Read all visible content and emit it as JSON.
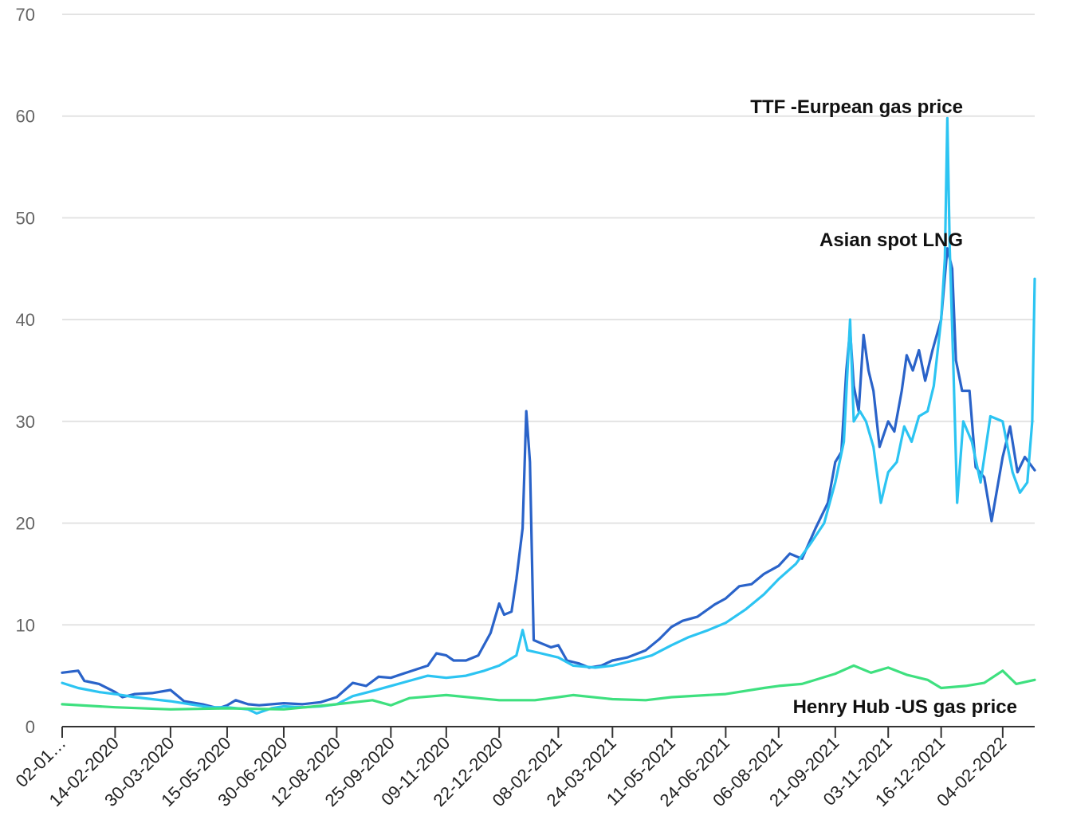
{
  "chart_data": {
    "type": "line",
    "title": "",
    "xlabel": "",
    "ylabel": "",
    "ylim": [
      0,
      70
    ],
    "y_ticks": [
      0,
      10,
      20,
      30,
      40,
      50,
      60,
      70
    ],
    "x_tick_labels": [
      "02-01…",
      "14-02-2020",
      "30-03-2020",
      "15-05-2020",
      "30-06-2020",
      "12-08-2020",
      "25-09-2020",
      "09-11-2020",
      "22-12-2020",
      "08-02-2021",
      "24-03-2021",
      "11-05-2021",
      "24-06-2021",
      "06-08-2021",
      "21-09-2021",
      "03-11-2021",
      "16-12-2021",
      "04-02-2022"
    ],
    "x_tick_dates": [
      "2020-01-02",
      "2020-02-14",
      "2020-03-30",
      "2020-05-15",
      "2020-06-30",
      "2020-08-12",
      "2020-09-25",
      "2020-11-09",
      "2020-12-22",
      "2021-02-08",
      "2021-03-24",
      "2021-05-11",
      "2021-06-24",
      "2021-08-06",
      "2021-09-21",
      "2021-11-03",
      "2021-12-16",
      "2022-02-04"
    ],
    "x_range": [
      "2020-01-02",
      "2022-03-02"
    ],
    "grid": true,
    "legend": "none",
    "annotations": [
      {
        "text": "TTF -Eurpean gas price",
        "series": "ttf"
      },
      {
        "text": "Asian spot LNG",
        "series": "asian"
      },
      {
        "text": "Henry Hub -US gas price",
        "series": "henry"
      }
    ],
    "series": [
      {
        "key": "asian",
        "color": "#2a63c9",
        "points": [
          [
            "2020-01-02",
            5.3
          ],
          [
            "2020-01-15",
            5.5
          ],
          [
            "2020-01-20",
            4.5
          ],
          [
            "2020-02-01",
            4.2
          ],
          [
            "2020-02-14",
            3.4
          ],
          [
            "2020-02-20",
            2.9
          ],
          [
            "2020-03-01",
            3.2
          ],
          [
            "2020-03-15",
            3.3
          ],
          [
            "2020-03-30",
            3.6
          ],
          [
            "2020-04-10",
            2.5
          ],
          [
            "2020-04-25",
            2.2
          ],
          [
            "2020-05-08",
            1.8
          ],
          [
            "2020-05-15",
            2.1
          ],
          [
            "2020-05-22",
            2.6
          ],
          [
            "2020-06-01",
            2.2
          ],
          [
            "2020-06-10",
            2.1
          ],
          [
            "2020-06-30",
            2.3
          ],
          [
            "2020-07-15",
            2.2
          ],
          [
            "2020-07-30",
            2.4
          ],
          [
            "2020-08-12",
            2.9
          ],
          [
            "2020-08-25",
            4.3
          ],
          [
            "2020-09-05",
            4.0
          ],
          [
            "2020-09-15",
            4.9
          ],
          [
            "2020-09-25",
            4.8
          ],
          [
            "2020-10-10",
            5.4
          ],
          [
            "2020-10-25",
            6.0
          ],
          [
            "2020-11-01",
            7.2
          ],
          [
            "2020-11-09",
            7.0
          ],
          [
            "2020-11-15",
            6.5
          ],
          [
            "2020-11-25",
            6.5
          ],
          [
            "2020-12-05",
            7.0
          ],
          [
            "2020-12-15",
            9.2
          ],
          [
            "2020-12-22",
            12.1
          ],
          [
            "2020-12-26",
            11.0
          ],
          [
            "2021-01-01",
            11.3
          ],
          [
            "2021-01-05",
            14.5
          ],
          [
            "2021-01-10",
            19.5
          ],
          [
            "2021-01-13",
            31.0
          ],
          [
            "2021-01-16",
            26.0
          ],
          [
            "2021-01-19",
            8.5
          ],
          [
            "2021-01-25",
            8.2
          ],
          [
            "2021-02-02",
            7.8
          ],
          [
            "2021-02-08",
            8.0
          ],
          [
            "2021-02-15",
            6.5
          ],
          [
            "2021-02-25",
            6.2
          ],
          [
            "2021-03-05",
            5.8
          ],
          [
            "2021-03-15",
            6.0
          ],
          [
            "2021-03-24",
            6.5
          ],
          [
            "2021-04-05",
            6.8
          ],
          [
            "2021-04-20",
            7.5
          ],
          [
            "2021-05-01",
            8.6
          ],
          [
            "2021-05-11",
            9.8
          ],
          [
            "2021-05-20",
            10.4
          ],
          [
            "2021-06-01",
            10.8
          ],
          [
            "2021-06-15",
            12.0
          ],
          [
            "2021-06-24",
            12.6
          ],
          [
            "2021-07-05",
            13.8
          ],
          [
            "2021-07-15",
            14.0
          ],
          [
            "2021-07-25",
            15.0
          ],
          [
            "2021-08-06",
            15.8
          ],
          [
            "2021-08-15",
            17.0
          ],
          [
            "2021-08-25",
            16.5
          ],
          [
            "2021-09-05",
            19.5
          ],
          [
            "2021-09-15",
            22.0
          ],
          [
            "2021-09-21",
            26.0
          ],
          [
            "2021-09-26",
            27.0
          ],
          [
            "2021-09-30",
            35.0
          ],
          [
            "2021-10-03",
            39.0
          ],
          [
            "2021-10-06",
            33.5
          ],
          [
            "2021-10-10",
            31.0
          ],
          [
            "2021-10-14",
            38.5
          ],
          [
            "2021-10-18",
            35.0
          ],
          [
            "2021-10-22",
            33.0
          ],
          [
            "2021-10-27",
            27.5
          ],
          [
            "2021-11-03",
            30.0
          ],
          [
            "2021-11-08",
            29.0
          ],
          [
            "2021-11-14",
            33.0
          ],
          [
            "2021-11-18",
            36.5
          ],
          [
            "2021-11-23",
            35.0
          ],
          [
            "2021-11-28",
            37.0
          ],
          [
            "2021-12-03",
            34.0
          ],
          [
            "2021-12-09",
            37.0
          ],
          [
            "2021-12-16",
            40.0
          ],
          [
            "2021-12-21",
            47.0
          ],
          [
            "2021-12-25",
            45.0
          ],
          [
            "2021-12-28",
            36.0
          ],
          [
            "2022-01-02",
            33.0
          ],
          [
            "2022-01-08",
            33.0
          ],
          [
            "2022-01-13",
            25.5
          ],
          [
            "2022-01-20",
            24.5
          ],
          [
            "2022-01-26",
            20.2
          ],
          [
            "2022-02-04",
            26.5
          ],
          [
            "2022-02-10",
            29.5
          ],
          [
            "2022-02-16",
            25.0
          ],
          [
            "2022-02-22",
            26.5
          ],
          [
            "2022-03-02",
            25.2
          ]
        ]
      },
      {
        "key": "ttf",
        "color": "#2cc4f2",
        "points": [
          [
            "2020-01-02",
            4.3
          ],
          [
            "2020-01-15",
            3.8
          ],
          [
            "2020-02-01",
            3.4
          ],
          [
            "2020-02-14",
            3.2
          ],
          [
            "2020-03-01",
            2.9
          ],
          [
            "2020-03-15",
            2.7
          ],
          [
            "2020-03-30",
            2.5
          ],
          [
            "2020-04-15",
            2.2
          ],
          [
            "2020-05-01",
            1.9
          ],
          [
            "2020-05-15",
            1.9
          ],
          [
            "2020-06-01",
            1.7
          ],
          [
            "2020-06-08",
            1.3
          ],
          [
            "2020-06-20",
            1.8
          ],
          [
            "2020-06-30",
            2.0
          ],
          [
            "2020-07-15",
            1.9
          ],
          [
            "2020-07-30",
            2.0
          ],
          [
            "2020-08-12",
            2.2
          ],
          [
            "2020-08-25",
            3.0
          ],
          [
            "2020-09-10",
            3.5
          ],
          [
            "2020-09-25",
            4.0
          ],
          [
            "2020-10-10",
            4.5
          ],
          [
            "2020-10-25",
            5.0
          ],
          [
            "2020-11-09",
            4.8
          ],
          [
            "2020-11-25",
            5.0
          ],
          [
            "2020-12-10",
            5.5
          ],
          [
            "2020-12-22",
            6.0
          ],
          [
            "2021-01-05",
            7.0
          ],
          [
            "2021-01-10",
            9.5
          ],
          [
            "2021-01-14",
            7.5
          ],
          [
            "2021-01-25",
            7.2
          ],
          [
            "2021-02-08",
            6.8
          ],
          [
            "2021-02-20",
            6.0
          ],
          [
            "2021-03-10",
            5.8
          ],
          [
            "2021-03-24",
            6.0
          ],
          [
            "2021-04-10",
            6.5
          ],
          [
            "2021-04-25",
            7.0
          ],
          [
            "2021-05-11",
            8.0
          ],
          [
            "2021-05-25",
            8.8
          ],
          [
            "2021-06-10",
            9.5
          ],
          [
            "2021-06-24",
            10.2
          ],
          [
            "2021-07-10",
            11.5
          ],
          [
            "2021-07-25",
            13.0
          ],
          [
            "2021-08-06",
            14.5
          ],
          [
            "2021-08-20",
            16.0
          ],
          [
            "2021-09-01",
            18.0
          ],
          [
            "2021-09-12",
            20.0
          ],
          [
            "2021-09-21",
            24.0
          ],
          [
            "2021-09-28",
            28.0
          ],
          [
            "2021-10-03",
            40.0
          ],
          [
            "2021-10-06",
            30.0
          ],
          [
            "2021-10-11",
            31.0
          ],
          [
            "2021-10-16",
            30.0
          ],
          [
            "2021-10-22",
            27.5
          ],
          [
            "2021-10-28",
            22.0
          ],
          [
            "2021-11-03",
            25.0
          ],
          [
            "2021-11-10",
            26.0
          ],
          [
            "2021-11-16",
            29.5
          ],
          [
            "2021-11-22",
            28.0
          ],
          [
            "2021-11-28",
            30.5
          ],
          [
            "2021-12-05",
            31.0
          ],
          [
            "2021-12-10",
            33.5
          ],
          [
            "2021-12-16",
            40.0
          ],
          [
            "2021-12-19",
            46.0
          ],
          [
            "2021-12-21",
            59.8
          ],
          [
            "2021-12-23",
            47.0
          ],
          [
            "2021-12-26",
            35.0
          ],
          [
            "2021-12-29",
            22.0
          ],
          [
            "2022-01-03",
            30.0
          ],
          [
            "2022-01-10",
            28.0
          ],
          [
            "2022-01-17",
            24.0
          ],
          [
            "2022-01-25",
            30.5
          ],
          [
            "2022-02-04",
            30.0
          ],
          [
            "2022-02-12",
            25.0
          ],
          [
            "2022-02-18",
            23.0
          ],
          [
            "2022-02-24",
            24.0
          ],
          [
            "2022-02-28",
            30.0
          ],
          [
            "2022-03-02",
            44.0
          ]
        ]
      },
      {
        "key": "henry",
        "color": "#3ee07f",
        "points": [
          [
            "2020-01-02",
            2.2
          ],
          [
            "2020-02-14",
            1.9
          ],
          [
            "2020-03-30",
            1.7
          ],
          [
            "2020-05-15",
            1.8
          ],
          [
            "2020-06-30",
            1.7
          ],
          [
            "2020-08-12",
            2.2
          ],
          [
            "2020-09-10",
            2.6
          ],
          [
            "2020-09-25",
            2.1
          ],
          [
            "2020-10-10",
            2.8
          ],
          [
            "2020-11-09",
            3.1
          ],
          [
            "2020-12-22",
            2.6
          ],
          [
            "2021-01-20",
            2.6
          ],
          [
            "2021-02-08",
            2.9
          ],
          [
            "2021-02-20",
            3.1
          ],
          [
            "2021-03-24",
            2.7
          ],
          [
            "2021-04-20",
            2.6
          ],
          [
            "2021-05-11",
            2.9
          ],
          [
            "2021-06-24",
            3.2
          ],
          [
            "2021-07-25",
            3.8
          ],
          [
            "2021-08-06",
            4.0
          ],
          [
            "2021-08-25",
            4.2
          ],
          [
            "2021-09-21",
            5.2
          ],
          [
            "2021-10-06",
            6.0
          ],
          [
            "2021-10-20",
            5.3
          ],
          [
            "2021-11-03",
            5.8
          ],
          [
            "2021-11-18",
            5.1
          ],
          [
            "2021-12-05",
            4.6
          ],
          [
            "2021-12-16",
            3.8
          ],
          [
            "2022-01-05",
            4.0
          ],
          [
            "2022-01-20",
            4.3
          ],
          [
            "2022-02-04",
            5.5
          ],
          [
            "2022-02-15",
            4.2
          ],
          [
            "2022-03-02",
            4.6
          ]
        ]
      }
    ]
  }
}
